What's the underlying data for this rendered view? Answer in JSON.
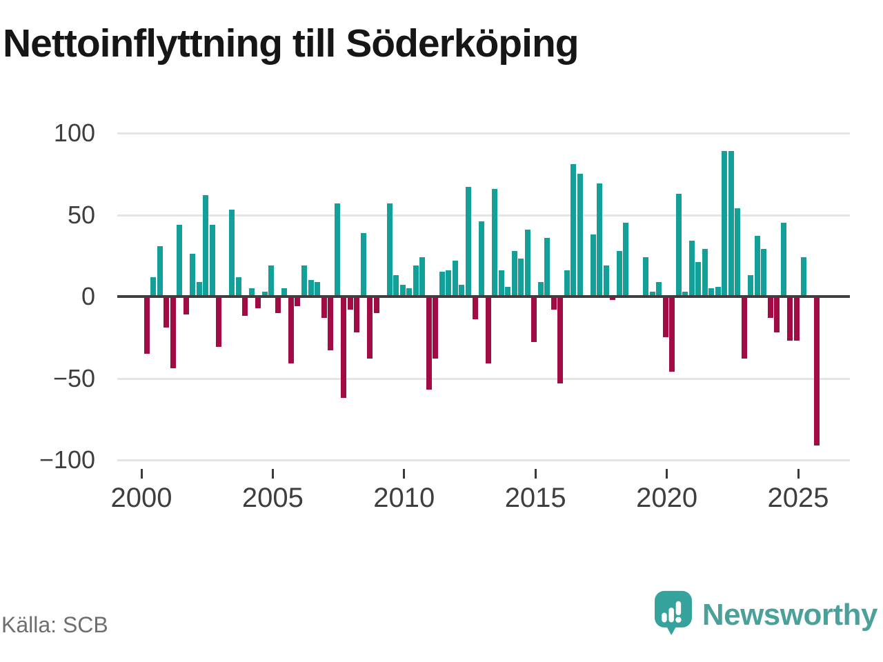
{
  "title": "Nettoinflyttning till Söderköping",
  "source": {
    "text": "Källa: SCB"
  },
  "brand": {
    "name": "Newsworthy",
    "icon": "newsworthy-speech-bubble-chart-icon",
    "color": "#4ba19a"
  },
  "colors": {
    "positive_bar": "#13a099",
    "negative_bar": "#a30b44",
    "gridline": "#e4e4e4",
    "zero_line": "#3f3f3f",
    "axis_text": "#3e3e3e",
    "title_text": "#161616",
    "source_text": "#6e6e6e"
  },
  "chart_data": {
    "type": "bar",
    "title": "Nettoinflyttning till Söderköping",
    "xlabel": "",
    "ylabel": "",
    "ylim": [
      -100,
      100
    ],
    "grid": true,
    "legend": false,
    "y_ticks": [
      100,
      50,
      0,
      -50,
      -100
    ],
    "x_tick_labels": [
      "2000",
      "2005",
      "2010",
      "2015",
      "2020",
      "2025"
    ],
    "categories": [
      "2000 Q1",
      "2000 Q2",
      "2000 Q3",
      "2000 Q4",
      "2001 Q1",
      "2001 Q2",
      "2001 Q3",
      "2001 Q4",
      "2002 Q1",
      "2002 Q2",
      "2002 Q3",
      "2002 Q4",
      "2003 Q1",
      "2003 Q2",
      "2003 Q3",
      "2003 Q4",
      "2004 Q1",
      "2004 Q2",
      "2004 Q3",
      "2004 Q4",
      "2005 Q1",
      "2005 Q2",
      "2005 Q3",
      "2005 Q4",
      "2006 Q1",
      "2006 Q2",
      "2006 Q3",
      "2006 Q4",
      "2007 Q1",
      "2007 Q2",
      "2007 Q3",
      "2007 Q4",
      "2008 Q1",
      "2008 Q2",
      "2008 Q3",
      "2008 Q4",
      "2009 Q1",
      "2009 Q2",
      "2009 Q3",
      "2009 Q4",
      "2010 Q1",
      "2010 Q2",
      "2010 Q3",
      "2010 Q4",
      "2011 Q1",
      "2011 Q2",
      "2011 Q3",
      "2011 Q4",
      "2012 Q1",
      "2012 Q2",
      "2012 Q3",
      "2012 Q4",
      "2013 Q1",
      "2013 Q2",
      "2013 Q3",
      "2013 Q4",
      "2014 Q1",
      "2014 Q2",
      "2014 Q3",
      "2014 Q4",
      "2015 Q1",
      "2015 Q2",
      "2015 Q3",
      "2015 Q4",
      "2016 Q1",
      "2016 Q2",
      "2016 Q3",
      "2016 Q4",
      "2017 Q1",
      "2017 Q2",
      "2017 Q3",
      "2017 Q4",
      "2018 Q1",
      "2018 Q2",
      "2018 Q3",
      "2018 Q4",
      "2019 Q1",
      "2019 Q2",
      "2019 Q3",
      "2019 Q4",
      "2020 Q1",
      "2020 Q2",
      "2020 Q3",
      "2020 Q4",
      "2021 Q1",
      "2021 Q2",
      "2021 Q3",
      "2021 Q4",
      "2022 Q1",
      "2022 Q2",
      "2022 Q3",
      "2022 Q4",
      "2023 Q1",
      "2023 Q2",
      "2023 Q3",
      "2023 Q4",
      "2024 Q1",
      "2024 Q2",
      "2024 Q3",
      "2024 Q4",
      "2025 Q1",
      "2025 Q2",
      "2025 Q3"
    ],
    "values": [
      -35,
      12,
      31,
      -19,
      -44,
      44,
      -11,
      26,
      9,
      62,
      44,
      -31,
      0,
      53,
      12,
      -12,
      5,
      -7,
      3,
      19,
      -10,
      5,
      -41,
      -6,
      19,
      10,
      9,
      -13,
      -33,
      57,
      -62,
      -8,
      -22,
      39,
      -38,
      -10,
      0,
      57,
      13,
      7,
      5,
      19,
      24,
      -57,
      -38,
      15,
      16,
      22,
      7,
      67,
      -14,
      46,
      -41,
      66,
      16,
      6,
      28,
      23,
      41,
      -28,
      9,
      36,
      -8,
      -53,
      16,
      81,
      75,
      0,
      38,
      69,
      19,
      -2,
      28,
      45,
      0,
      0,
      24,
      3,
      9,
      -25,
      -46,
      63,
      3,
      34,
      21,
      29,
      5,
      6,
      89,
      89,
      54,
      -38,
      13,
      37,
      29,
      -13,
      -22,
      45,
      -27,
      -27,
      24,
      0,
      -91
    ]
  }
}
